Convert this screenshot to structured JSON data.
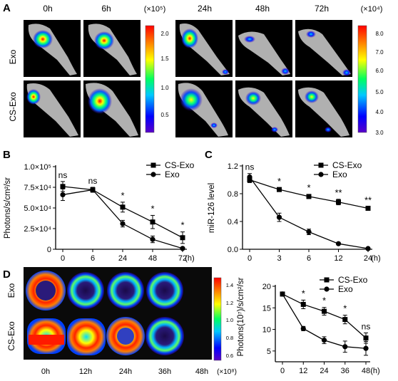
{
  "panels": {
    "A": {
      "letter": "A",
      "time_labels_left": [
        "0h",
        "6h"
      ],
      "time_labels_right": [
        "24h",
        "48h",
        "72h"
      ],
      "row_labels": [
        "Exo",
        "CS-Exo"
      ],
      "colorbar_left": {
        "unit": "(×10⁵)",
        "ticks": [
          "2.0",
          "1.5",
          "1.0",
          "0.5"
        ]
      },
      "colorbar_right": {
        "unit": "(×10⁴)",
        "ticks": [
          "8.0",
          "7.0",
          "6.0",
          "5.0",
          "4.0",
          "3.0"
        ]
      }
    },
    "D_plate": {
      "row_labels": [
        "Exo",
        "CS-Exo"
      ],
      "time_labels": [
        "0h",
        "12h",
        "24h",
        "36h",
        "48h"
      ],
      "colorbar": {
        "unit": "(×10⁸)",
        "ticks": [
          "1.4",
          "1.2",
          "1.0",
          "0.8",
          "0.6"
        ]
      }
    }
  },
  "chart_data": [
    {
      "panel": "B",
      "type": "line",
      "x": [
        0,
        6,
        24,
        48,
        72
      ],
      "tick_labels_x": [
        "0",
        "6",
        "24",
        "48",
        "72"
      ],
      "x_unit": "(h)",
      "ylabel": "Photons/s/cm²/sr",
      "ylim": [
        0,
        100000
      ],
      "tick_labels_y": [
        "0",
        "2.5×10⁴",
        "5.0×10⁴",
        "7.5×10⁴",
        "1.0×10⁵"
      ],
      "series": [
        {
          "name": "CS-Exo",
          "marker": "square",
          "values": [
            76000,
            72000,
            51000,
            33000,
            14000
          ],
          "errors": [
            6000,
            3000,
            6000,
            8000,
            7000
          ]
        },
        {
          "name": "Exo",
          "marker": "circle",
          "values": [
            66000,
            72000,
            31000,
            12000,
            1000
          ],
          "errors": [
            7000,
            3000,
            4000,
            4000,
            1000
          ]
        }
      ],
      "annotations": [
        "ns",
        "ns",
        "*",
        "*",
        "*"
      ],
      "legend": "top-right"
    },
    {
      "panel": "C",
      "type": "line",
      "x": [
        0,
        3,
        6,
        12,
        24
      ],
      "tick_labels_x": [
        "0",
        "3",
        "6",
        "12",
        "24"
      ],
      "x_unit": "(h)",
      "ylabel": "miR-126 level",
      "ylim": [
        0,
        1.2
      ],
      "tick_labels_y": [
        "0.0",
        "0.4",
        "0.8",
        "1.2"
      ],
      "series": [
        {
          "name": "CS-Exo",
          "marker": "square",
          "values": [
            1.0,
            0.86,
            0.76,
            0.68,
            0.59
          ],
          "errors": [
            0.04,
            0.02,
            0.03,
            0.04,
            0.02
          ]
        },
        {
          "name": "Exo",
          "marker": "circle",
          "values": [
            1.04,
            0.46,
            0.25,
            0.08,
            0.01
          ],
          "errors": [
            0.05,
            0.06,
            0.04,
            0.01,
            0.01
          ]
        }
      ],
      "annotations": [
        "ns",
        "*",
        "*",
        "**",
        "**"
      ],
      "legend": "top-right"
    },
    {
      "panel": "D",
      "type": "line",
      "x": [
        0,
        12,
        24,
        36,
        48
      ],
      "tick_labels_x": [
        "0",
        "12",
        "24",
        "36",
        "48"
      ],
      "x_unit": "(h)",
      "ylabel": "Photons(10⁷)/s/cm²/sr",
      "ylim": [
        2.5,
        20
      ],
      "tick_labels_y": [
        "5",
        "10",
        "15",
        "20"
      ],
      "series": [
        {
          "name": "CS-Exo",
          "marker": "square",
          "values": [
            18.2,
            15.8,
            14.2,
            12.3,
            8.0
          ],
          "errors": [
            0.3,
            1.0,
            0.9,
            1.0,
            1.2
          ]
        },
        {
          "name": "Exo",
          "marker": "circle",
          "values": [
            18.2,
            10.2,
            7.5,
            6.0,
            5.6
          ],
          "errors": [
            0.3,
            0.5,
            0.8,
            1.3,
            1.6
          ]
        }
      ],
      "annotations": [
        "",
        "*",
        "*",
        "*",
        "ns"
      ],
      "legend": "top-right"
    }
  ],
  "panel_letters": [
    "A",
    "B",
    "C",
    "D"
  ]
}
